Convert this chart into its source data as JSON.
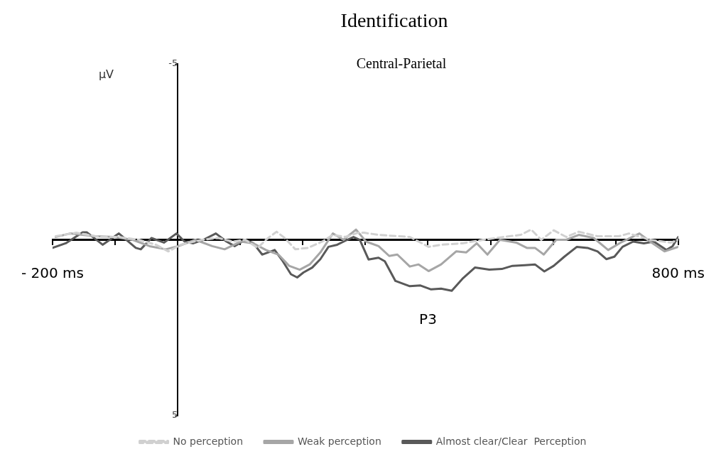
{
  "chart_data": {
    "type": "line",
    "title": "Identification",
    "subtitle": "Central-Parietal",
    "ylabel": "µV",
    "xlim": [
      -200,
      800
    ],
    "ylim": [
      5,
      -5
    ],
    "xticks": [
      {
        "value": -200,
        "label": "- 200 ms"
      },
      {
        "value": -100,
        "label": null
      },
      {
        "value": 0,
        "label": null
      },
      {
        "value": 100,
        "label": null
      },
      {
        "value": 200,
        "label": null
      },
      {
        "value": 300,
        "label": null
      },
      {
        "value": 400,
        "label": null
      },
      {
        "value": 500,
        "label": null
      },
      {
        "value": 600,
        "label": null
      },
      {
        "value": 700,
        "label": null
      },
      {
        "value": 800,
        "label": "800 ms"
      }
    ],
    "yticks": [
      -5,
      5
    ],
    "legend": "bottom",
    "marker": "none",
    "annotations": [
      "P3"
    ],
    "series": [
      {
        "name": "No perception",
        "color": "#d0d0d0",
        "line_style": "dashed",
        "x": [
          -195,
          -162,
          -125,
          -95,
          -62,
          -35,
          -15,
          5,
          38,
          65,
          88,
          108,
          128,
          141,
          158,
          171,
          188,
          208,
          231,
          248,
          268,
          288,
          298,
          321,
          371,
          401,
          421,
          455,
          488,
          521,
          548,
          565,
          581,
          601,
          621,
          641,
          671,
          705,
          721,
          755,
          788,
          800
        ],
        "values": [
          -0.1,
          -0.2,
          -0.08,
          -0.08,
          0,
          0.14,
          0.33,
          0.14,
          0,
          -0.05,
          0.05,
          0,
          0.23,
          0,
          -0.23,
          -0.05,
          0.27,
          0.23,
          0.05,
          -0.14,
          -0.08,
          -0.2,
          -0.2,
          -0.14,
          -0.08,
          0.2,
          0.14,
          0.1,
          0,
          -0.08,
          -0.14,
          -0.29,
          0,
          -0.27,
          -0.08,
          -0.23,
          -0.1,
          -0.1,
          -0.18,
          0,
          0.08,
          0
        ]
      },
      {
        "name": "Weak perception",
        "color": "#a6a6a6",
        "line_style": "solid",
        "x": [
          -195,
          -172,
          -132,
          -102,
          -72,
          -45,
          -19,
          1,
          28,
          55,
          75,
          101,
          121,
          141,
          161,
          178,
          195,
          211,
          228,
          248,
          265,
          285,
          301,
          321,
          338,
          351,
          371,
          385,
          401,
          421,
          445,
          461,
          478,
          495,
          515,
          541,
          558,
          571,
          585,
          605,
          621,
          641,
          665,
          688,
          708,
          738,
          755,
          778,
          800
        ],
        "values": [
          -0.08,
          -0.18,
          -0.1,
          -0.08,
          0,
          0.18,
          0.27,
          0.18,
          0,
          0.18,
          0.27,
          0.05,
          0.1,
          0.29,
          0.42,
          0.74,
          0.85,
          0.7,
          0.36,
          -0.18,
          0,
          -0.29,
          0.05,
          0.18,
          0.46,
          0.42,
          0.76,
          0.7,
          0.89,
          0.7,
          0.33,
          0.36,
          0.1,
          0.42,
          0,
          0.08,
          0.23,
          0.23,
          0.42,
          0,
          0,
          -0.14,
          -0.05,
          0.29,
          0.08,
          -0.18,
          0.05,
          0.33,
          0.2
        ]
      },
      {
        "name": "Almost clear/Clear  Perception",
        "color": "#595959",
        "line_style": "solid",
        "x": [
          -200,
          -179,
          -152,
          -145,
          -120,
          -94,
          -67,
          -59,
          -42,
          -22,
          -2,
          11,
          25,
          41,
          61,
          78,
          91,
          108,
          121,
          135,
          155,
          168,
          181,
          191,
          201,
          215,
          228,
          241,
          255,
          271,
          281,
          291,
          305,
          321,
          331,
          348,
          371,
          388,
          405,
          421,
          438,
          455,
          475,
          498,
          518,
          535,
          555,
          571,
          586,
          601,
          618,
          638,
          655,
          671,
          685,
          698,
          711,
          728,
          745,
          761,
          781,
          791,
          800
        ],
        "values": [
          0.23,
          0.1,
          -0.21,
          -0.21,
          0.14,
          -0.18,
          0.23,
          0.27,
          -0.05,
          0.08,
          -0.18,
          0.05,
          0.1,
          0,
          -0.18,
          0.05,
          0.18,
          0,
          0.1,
          0.42,
          0.29,
          0.61,
          0.98,
          1.07,
          0.93,
          0.79,
          0.55,
          0.2,
          0.14,
          0,
          -0.08,
          0,
          0.56,
          0.51,
          0.61,
          1.17,
          1.32,
          1.3,
          1.41,
          1.39,
          1.45,
          1.11,
          0.79,
          0.85,
          0.83,
          0.74,
          0.72,
          0.7,
          0.9,
          0.74,
          0.48,
          0.2,
          0.23,
          0.33,
          0.55,
          0.48,
          0.2,
          0.05,
          0.1,
          0.05,
          0.29,
          0.18,
          -0.08
        ]
      }
    ]
  }
}
